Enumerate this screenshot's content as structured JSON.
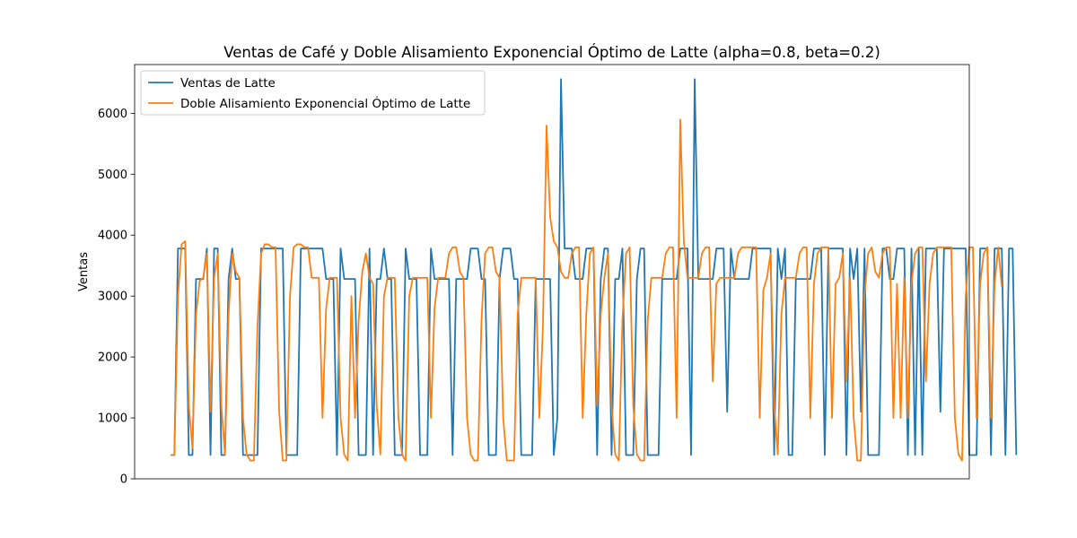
{
  "chart_data": {
    "type": "line",
    "title": "Ventas de Café y Doble Alisamiento Exponencial Óptimo de Latte (alpha=0.8, beta=0.2)",
    "xlabel": "",
    "ylabel": "Ventas",
    "ylim": [
      0,
      6800
    ],
    "xlim": [
      -10,
      221
    ],
    "yticks": [
      0,
      1000,
      2000,
      3000,
      4000,
      5000,
      6000
    ],
    "legend_position": "top-left",
    "grid": false,
    "colors": {
      "series0": "#1f77b4",
      "series1": "#ff7f0e"
    },
    "series": [
      {
        "name": "Ventas de Latte",
        "values": [
          390,
          390,
          3780,
          3780,
          3780,
          390,
          390,
          3280,
          3280,
          3280,
          3780,
          390,
          3780,
          3780,
          390,
          390,
          3280,
          3780,
          3280,
          3280,
          390,
          390,
          390,
          390,
          390,
          3780,
          3780,
          3780,
          3780,
          3780,
          3780,
          3780,
          390,
          390,
          390,
          390,
          3780,
          3780,
          3780,
          3780,
          3780,
          3780,
          3780,
          3280,
          3280,
          3280,
          390,
          3780,
          3280,
          3280,
          3280,
          3280,
          390,
          390,
          390,
          3780,
          390,
          3280,
          3280,
          3780,
          3280,
          3280,
          390,
          390,
          390,
          3780,
          3280,
          3280,
          3280,
          390,
          390,
          390,
          3780,
          3280,
          3280,
          3280,
          3280,
          3280,
          390,
          3280,
          3280,
          3280,
          3280,
          3780,
          3780,
          3780,
          3280,
          3280,
          390,
          390,
          390,
          3280,
          3780,
          3780,
          3780,
          3280,
          3280,
          390,
          390,
          390,
          390,
          3280,
          3280,
          3280,
          3280,
          3280,
          390,
          1000,
          6560,
          3780,
          3780,
          3780,
          3280,
          3280,
          3280,
          3780,
          3780,
          3780,
          390,
          3280,
          3780,
          3780,
          390,
          3280,
          3280,
          3780,
          390,
          390,
          390,
          3280,
          3780,
          3780,
          390,
          390,
          390,
          390,
          3280,
          3280,
          3280,
          3280,
          3280,
          3780,
          3780,
          3780,
          390,
          6560,
          3280,
          3280,
          3280,
          3280,
          3280,
          3780,
          3780,
          3780,
          1100,
          3780,
          3280,
          3280,
          3280,
          3280,
          3280,
          3780,
          3780,
          3780,
          3780,
          3780,
          3780,
          390,
          3780,
          3280,
          3780,
          390,
          390,
          3280,
          3280,
          3280,
          3280,
          3280,
          3780,
          3780,
          3780,
          390,
          3780,
          3780,
          3780,
          3780,
          3780,
          390,
          3780,
          3280,
          3780,
          1100,
          3780,
          390,
          390,
          390,
          390,
          3780,
          3780,
          3280,
          3280,
          3780,
          3780,
          3780,
          390,
          3780,
          390,
          3780,
          390,
          3780,
          3780,
          3780,
          3780,
          1100,
          3780,
          3780,
          3780,
          3780,
          3780,
          3780,
          3780,
          390,
          390,
          390,
          3780,
          3780,
          3780,
          390,
          3780,
          3780,
          3780,
          390,
          3780,
          3780,
          390
        ]
      },
      {
        "name": "Doble Alisamiento Exponencial Óptimo de Latte",
        "values": [
          390,
          390,
          3000,
          3850,
          3900,
          1200,
          500,
          2700,
          3250,
          3300,
          3700,
          1100,
          3300,
          3700,
          1200,
          400,
          2700,
          3700,
          3400,
          3300,
          1000,
          400,
          300,
          300,
          2500,
          3700,
          3850,
          3850,
          3800,
          3800,
          1100,
          300,
          300,
          3000,
          3800,
          3850,
          3850,
          3800,
          3800,
          3300,
          3300,
          3300,
          1000,
          2800,
          3300,
          3300,
          3300,
          1000,
          400,
          300,
          3000,
          1000,
          2600,
          3400,
          3700,
          3300,
          3200,
          1200,
          400,
          3000,
          3300,
          3300,
          3300,
          1000,
          400,
          300,
          3000,
          3300,
          3300,
          3300,
          3300,
          3300,
          1000,
          2800,
          3300,
          3300,
          3300,
          3700,
          3800,
          3800,
          3400,
          3300,
          1000,
          400,
          300,
          300,
          2600,
          3700,
          3800,
          3800,
          3400,
          3300,
          1000,
          300,
          300,
          300,
          2700,
          3300,
          3300,
          3300,
          3300,
          3300,
          1000,
          2500,
          5800,
          4300,
          3900,
          3800,
          3400,
          3300,
          3300,
          3700,
          3800,
          3800,
          1000,
          2700,
          3700,
          3800,
          1200,
          2700,
          3300,
          3700,
          1200,
          400,
          300,
          2600,
          3700,
          3800,
          1200,
          400,
          300,
          300,
          2600,
          3300,
          3300,
          3300,
          3300,
          3700,
          3800,
          3800,
          1000,
          5900,
          3900,
          3300,
          3300,
          3300,
          3300,
          3700,
          3800,
          3800,
          1600,
          3200,
          3300,
          3300,
          3300,
          3300,
          3300,
          3700,
          3800,
          3800,
          3800,
          3800,
          3800,
          1000,
          3100,
          3300,
          3700,
          1200,
          400,
          2700,
          3300,
          3300,
          3300,
          3300,
          3700,
          3800,
          3800,
          1000,
          3200,
          3700,
          3800,
          3800,
          3800,
          1000,
          3200,
          3300,
          3700,
          1600,
          3300,
          1000,
          300,
          300,
          3000,
          3700,
          3800,
          3400,
          3300,
          3700,
          3800,
          3800,
          1000,
          3200,
          1000,
          3300,
          1000,
          3200,
          3700,
          3800,
          3800,
          1600,
          3200,
          3700,
          3800,
          3800,
          3800,
          3800,
          3800,
          1000,
          400,
          300,
          3000,
          3800,
          3800,
          1000,
          3200,
          3700,
          3800,
          1000,
          3200,
          3800,
          3150
        ]
      }
    ]
  }
}
